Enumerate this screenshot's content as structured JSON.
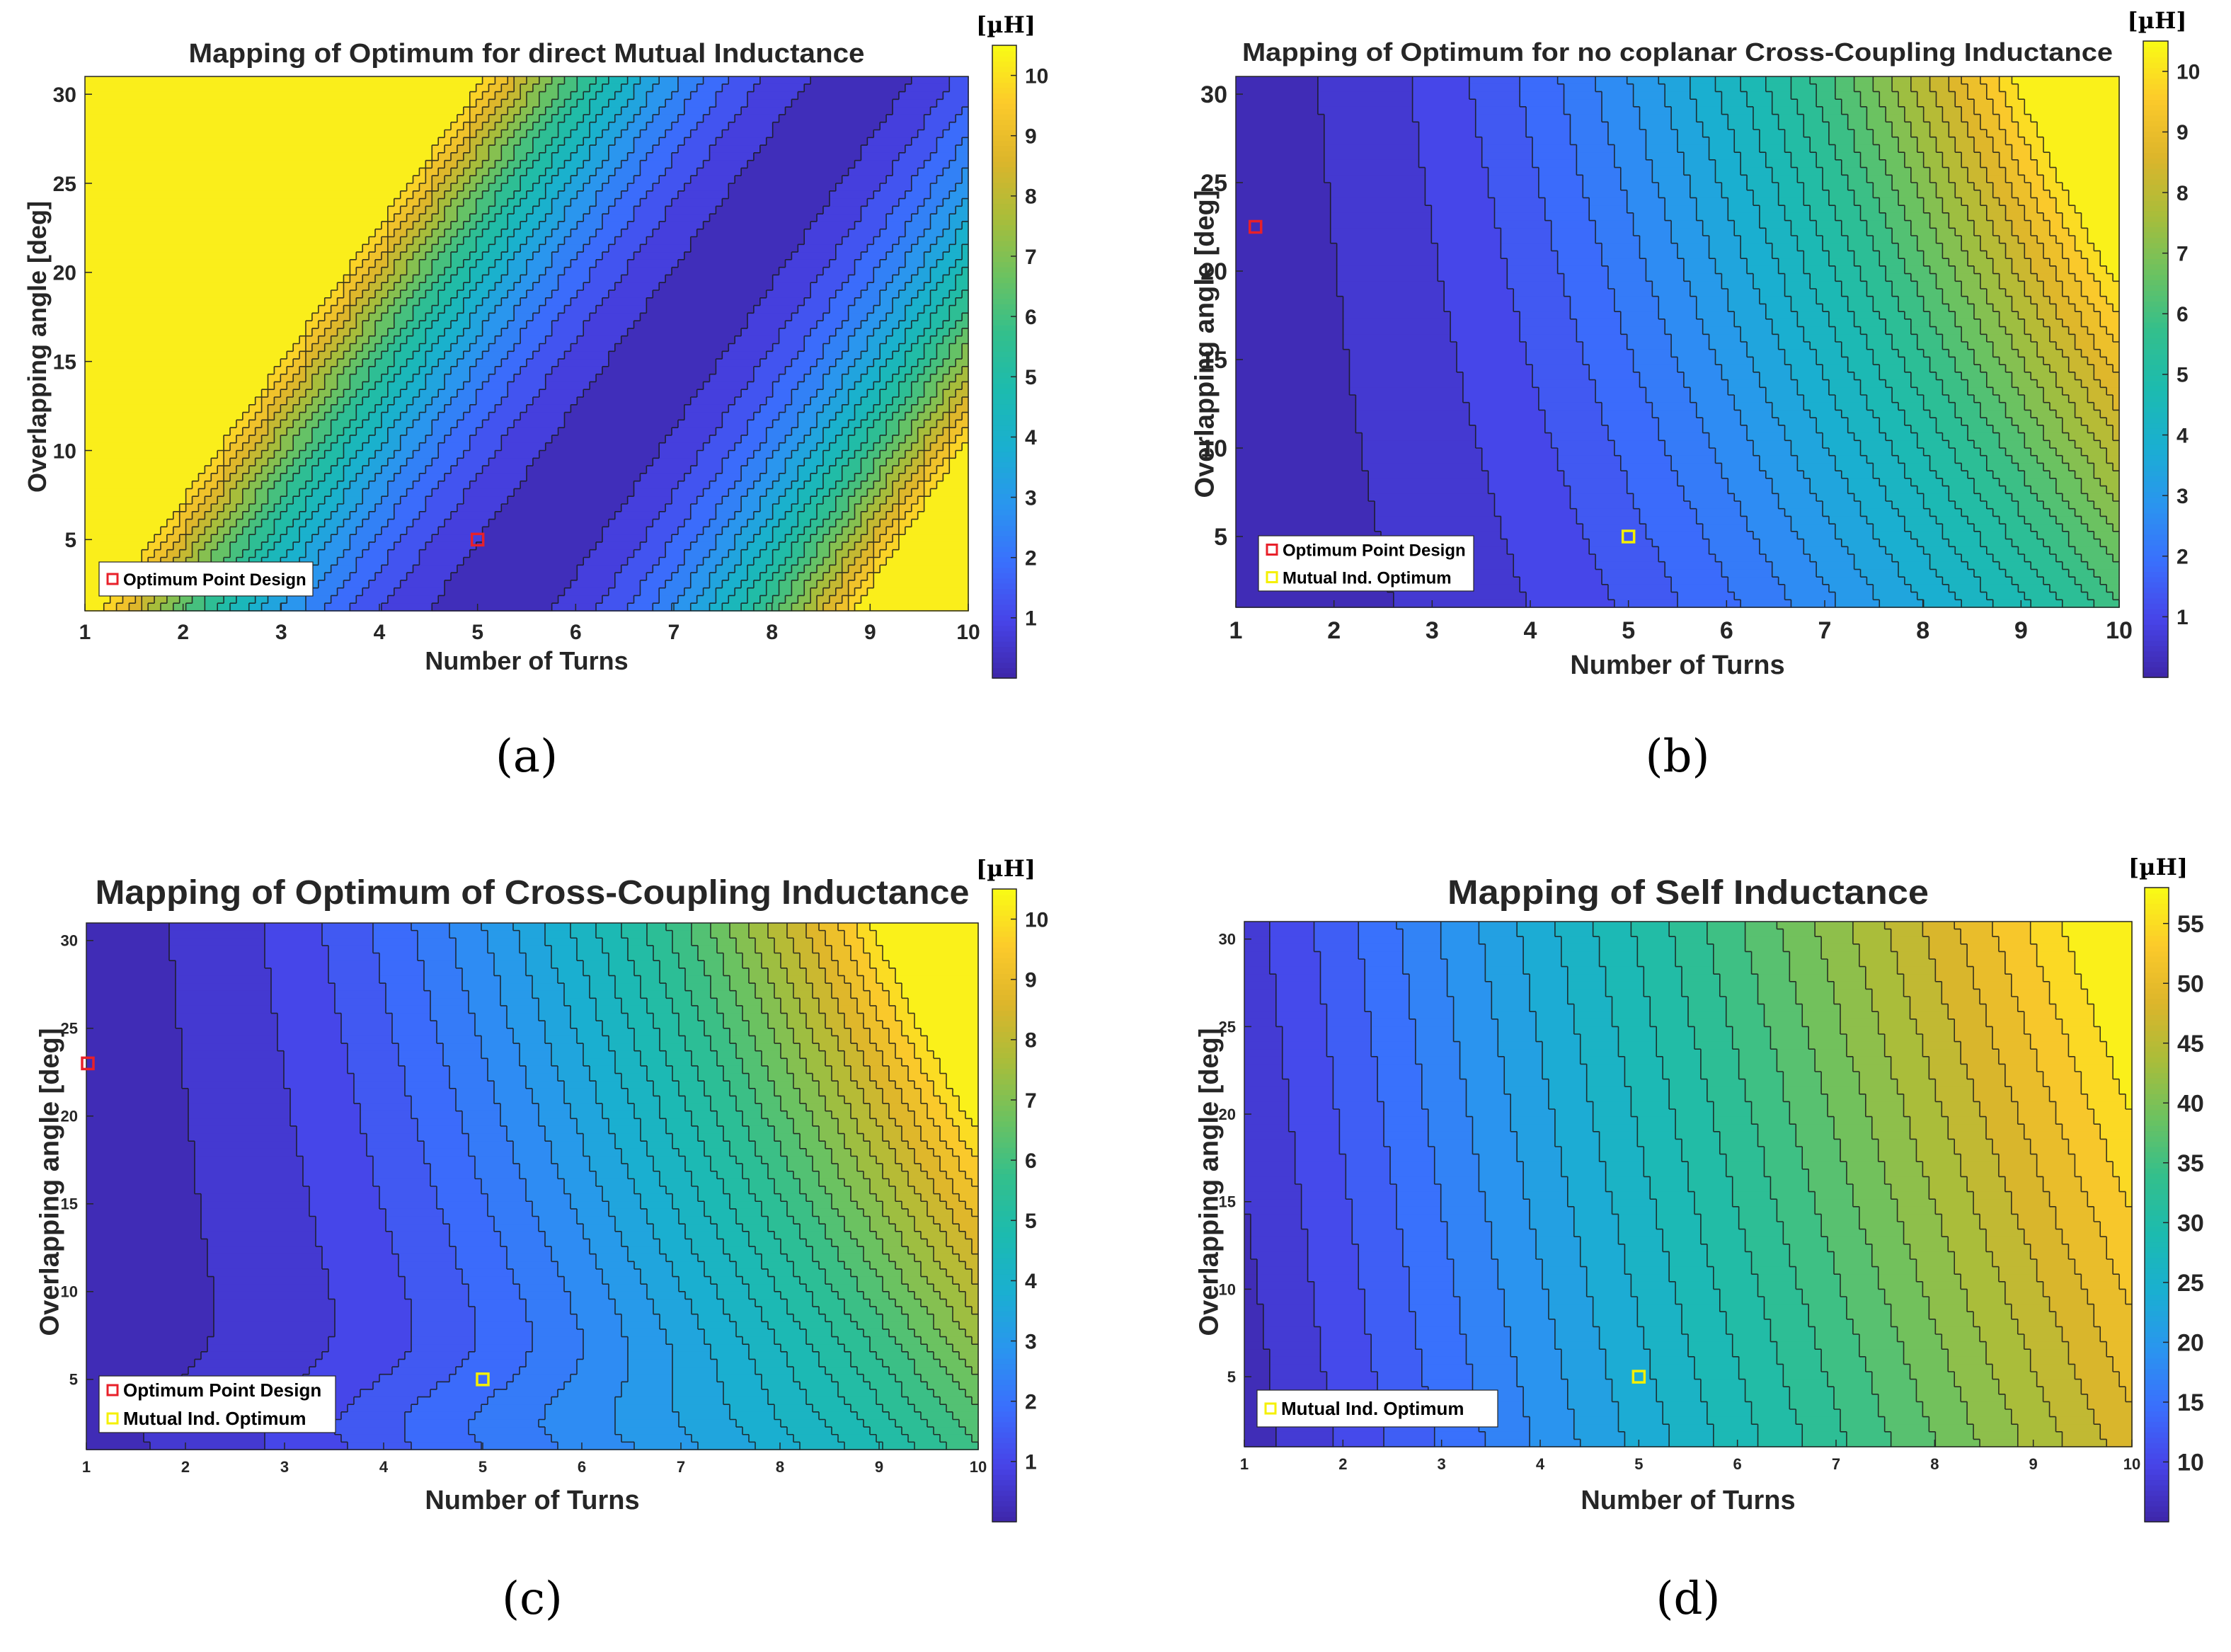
{
  "colors": {
    "parula": [
      "#3E26A8",
      "#4744E8",
      "#3A6FFD",
      "#2A95EF",
      "#1AAFD1",
      "#1CBBAF",
      "#33BF8C",
      "#6CC260",
      "#A9BD3A",
      "#DCB52B",
      "#FCCA2B",
      "#F9FB15"
    ],
    "optimum_marker": "#E8202A",
    "mutual_marker": "#F5F000",
    "axis": "#262626"
  },
  "chart_data": [
    {
      "id": "a",
      "type": "heatmap",
      "title": "Mapping of Optimum for direct Mutual Inductance",
      "xlabel": "Number of Turns",
      "ylabel": "Overlapping angle [deg]",
      "xlim": [
        1,
        10
      ],
      "ylim": [
        1,
        31
      ],
      "xticks": [
        1,
        2,
        3,
        4,
        5,
        6,
        7,
        8,
        9,
        10
      ],
      "yticks": [
        5,
        10,
        15,
        20,
        25,
        30
      ],
      "colorbar": {
        "unit": "[µH]",
        "range": [
          0,
          10.5
        ],
        "ticks": [
          1,
          2,
          3,
          4,
          5,
          6,
          7,
          8,
          9,
          10
        ]
      },
      "field": "mutual",
      "levels": 20,
      "markers": [
        {
          "label": "Optimum Point Design",
          "kind": "optimum",
          "x": 5.0,
          "y": 5.0
        }
      ],
      "caption": "(a)"
    },
    {
      "id": "b",
      "type": "heatmap",
      "title": "Mapping of Optimum for no coplanar Cross-Coupling Inductance",
      "xlabel": "Number of Turns",
      "ylabel": "Overlapping angle [deg]",
      "xlim": [
        1,
        10
      ],
      "ylim": [
        1,
        31
      ],
      "xticks": [
        1,
        2,
        3,
        4,
        5,
        6,
        7,
        8,
        9,
        10
      ],
      "yticks": [
        5,
        10,
        15,
        20,
        25,
        30
      ],
      "colorbar": {
        "unit": "[µH]",
        "range": [
          0,
          10.5
        ],
        "ticks": [
          1,
          2,
          3,
          4,
          5,
          6,
          7,
          8,
          9,
          10
        ]
      },
      "field": "cross_b",
      "levels": 26,
      "markers": [
        {
          "label": "Optimum Point Design",
          "kind": "optimum",
          "x": 1.2,
          "y": 22.5
        },
        {
          "label": "Mutual Ind. Optimum",
          "kind": "mutual",
          "x": 5.0,
          "y": 5.0
        }
      ],
      "caption": "(b)"
    },
    {
      "id": "c",
      "type": "heatmap",
      "title": "Mapping of Optimum of Cross-Coupling Inductance",
      "xlabel": "Number of Turns",
      "ylabel": "Overlapping angle [deg]",
      "xlim": [
        1,
        10
      ],
      "ylim": [
        1,
        31
      ],
      "xticks": [
        1,
        2,
        3,
        4,
        5,
        6,
        7,
        8,
        9,
        10
      ],
      "yticks": [
        5,
        10,
        15,
        20,
        25,
        30
      ],
      "colorbar": {
        "unit": "[µH]",
        "range": [
          0,
          10.5
        ],
        "ticks": [
          1,
          2,
          3,
          4,
          5,
          6,
          7,
          8,
          9,
          10
        ]
      },
      "field": "cross_c",
      "levels": 26,
      "markers": [
        {
          "label": "Optimum Point Design",
          "kind": "optimum",
          "x": 1.0,
          "y": 23.0
        },
        {
          "label": "Mutual Ind. Optimum",
          "kind": "mutual",
          "x": 5.0,
          "y": 5.0
        }
      ],
      "caption": "(c)"
    },
    {
      "id": "d",
      "type": "heatmap",
      "title": "Mapping of Self Inductance",
      "xlabel": "Number of Turns",
      "ylabel": "Overlapping angle [deg]",
      "xlim": [
        1,
        10
      ],
      "ylim": [
        1,
        31
      ],
      "xticks": [
        1,
        2,
        3,
        4,
        5,
        6,
        7,
        8,
        9,
        10
      ],
      "yticks": [
        5,
        10,
        15,
        20,
        25,
        30
      ],
      "colorbar": {
        "unit": "[µH]",
        "range": [
          5,
          58
        ],
        "ticks": [
          10,
          15,
          20,
          25,
          30,
          35,
          40,
          45,
          50,
          55
        ]
      },
      "field": "self",
      "levels": 24,
      "markers": [
        {
          "label": "Mutual Ind. Optimum",
          "kind": "mutual",
          "x": 5.0,
          "y": 5.0
        }
      ],
      "caption": "(d)"
    }
  ]
}
